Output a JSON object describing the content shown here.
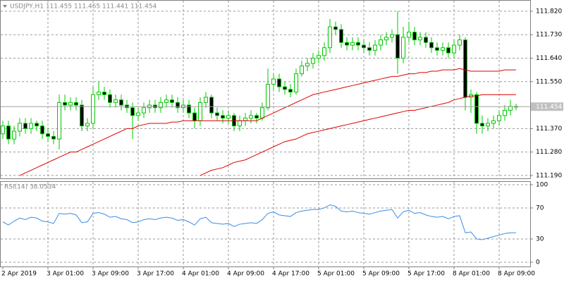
{
  "chart_data": [
    {
      "type": "candlestick",
      "title": "USDJPY,H1  111.455 111.465 111.441 111.454",
      "x": [
        "2 Apr 2019",
        null,
        null,
        null,
        null,
        null,
        null,
        null,
        "3 Apr 01:00",
        null,
        null,
        null,
        null,
        null,
        null,
        null,
        "3 Apr 09:00",
        null,
        null,
        null,
        null,
        null,
        null,
        null,
        "3 Apr 17:00",
        null,
        null,
        null,
        null,
        null,
        null,
        null,
        "4 Apr 01:00",
        null,
        null,
        null,
        null,
        null,
        null,
        null,
        "4 Apr 09:00",
        null,
        null,
        null,
        null,
        null,
        null,
        null,
        "4 Apr 17:00",
        null,
        null,
        null,
        null,
        null,
        null,
        null,
        "5 Apr 01:00",
        null,
        null,
        null,
        null,
        null,
        null,
        null,
        "5 Apr 09:00",
        null,
        null,
        null,
        null,
        null,
        null,
        null,
        "5 Apr 17:00",
        null,
        null,
        null,
        null,
        null,
        null,
        null,
        "8 Apr 01:00",
        null,
        null,
        null,
        null,
        null,
        null,
        null,
        "8 Apr 09:00",
        null,
        null,
        null
      ],
      "open": [
        111.35,
        111.38,
        111.33,
        111.36,
        111.39,
        111.37,
        111.39,
        111.38,
        111.35,
        111.34,
        111.33,
        111.47,
        111.46,
        111.47,
        111.46,
        111.38,
        111.39,
        111.5,
        111.51,
        111.5,
        111.47,
        111.48,
        111.46,
        111.45,
        111.42,
        111.43,
        111.45,
        111.46,
        111.45,
        111.47,
        111.48,
        111.47,
        111.45,
        111.46,
        111.43,
        111.4,
        111.47,
        111.49,
        111.43,
        111.42,
        111.41,
        111.42,
        111.38,
        111.4,
        111.41,
        111.42,
        111.41,
        111.45,
        111.54,
        111.56,
        111.53,
        111.52,
        111.51,
        111.58,
        111.61,
        111.62,
        111.64,
        111.65,
        111.68,
        111.76,
        111.75,
        111.7,
        111.69,
        111.7,
        111.69,
        111.68,
        111.67,
        111.69,
        111.71,
        111.72,
        111.73,
        111.64,
        111.72,
        111.74,
        111.71,
        111.72,
        111.7,
        111.68,
        111.67,
        111.68,
        111.66,
        111.69,
        111.71,
        111.49,
        111.5,
        111.39,
        111.38,
        111.39,
        111.4,
        111.42,
        111.44,
        111.455
      ],
      "high": [
        111.4,
        111.4,
        111.38,
        111.41,
        111.41,
        111.41,
        111.4,
        111.4,
        111.37,
        111.36,
        111.5,
        111.5,
        111.49,
        111.49,
        111.48,
        111.41,
        111.53,
        111.55,
        111.53,
        111.52,
        111.5,
        111.5,
        111.48,
        111.47,
        111.45,
        111.47,
        111.48,
        111.48,
        111.49,
        111.5,
        111.5,
        111.49,
        111.48,
        111.48,
        111.45,
        111.49,
        111.51,
        111.5,
        111.45,
        111.44,
        111.44,
        111.43,
        111.42,
        111.43,
        111.44,
        111.43,
        111.47,
        111.6,
        111.58,
        111.58,
        111.55,
        111.54,
        111.6,
        111.63,
        111.64,
        111.66,
        111.67,
        111.7,
        111.79,
        111.78,
        111.77,
        111.72,
        111.72,
        111.72,
        111.71,
        111.7,
        111.71,
        111.73,
        111.74,
        111.75,
        111.82,
        111.76,
        111.78,
        111.76,
        111.74,
        111.74,
        111.72,
        111.7,
        111.7,
        111.7,
        111.71,
        111.73,
        111.72,
        111.52,
        111.51,
        111.42,
        111.41,
        111.42,
        111.44,
        111.46,
        111.48,
        111.465
      ],
      "low": [
        111.33,
        111.31,
        111.31,
        111.34,
        111.35,
        111.35,
        111.36,
        111.33,
        111.32,
        111.31,
        111.29,
        111.44,
        111.44,
        111.44,
        111.36,
        111.36,
        111.37,
        111.48,
        111.48,
        111.45,
        111.45,
        111.44,
        111.43,
        111.33,
        111.4,
        111.41,
        111.43,
        111.43,
        111.43,
        111.45,
        111.45,
        111.43,
        111.43,
        111.41,
        111.37,
        111.38,
        111.45,
        111.41,
        111.4,
        111.39,
        111.39,
        111.36,
        111.36,
        111.38,
        111.39,
        111.39,
        111.4,
        111.44,
        111.52,
        111.51,
        111.5,
        111.49,
        111.5,
        111.57,
        111.59,
        111.6,
        111.62,
        111.63,
        111.66,
        111.73,
        111.68,
        111.67,
        111.67,
        111.67,
        111.66,
        111.65,
        111.65,
        111.67,
        111.69,
        111.7,
        111.58,
        111.62,
        111.7,
        111.69,
        111.69,
        111.68,
        111.66,
        111.65,
        111.65,
        111.64,
        111.64,
        111.67,
        111.44,
        111.43,
        111.35,
        111.35,
        111.36,
        111.37,
        111.38,
        111.4,
        111.42,
        111.441
      ],
      "close": [
        111.38,
        111.33,
        111.36,
        111.39,
        111.37,
        111.39,
        111.38,
        111.35,
        111.34,
        111.33,
        111.47,
        111.46,
        111.47,
        111.46,
        111.38,
        111.39,
        111.5,
        111.51,
        111.5,
        111.47,
        111.48,
        111.46,
        111.45,
        111.42,
        111.43,
        111.45,
        111.46,
        111.45,
        111.47,
        111.48,
        111.47,
        111.45,
        111.46,
        111.43,
        111.4,
        111.47,
        111.49,
        111.43,
        111.42,
        111.41,
        111.42,
        111.38,
        111.4,
        111.41,
        111.42,
        111.41,
        111.45,
        111.54,
        111.56,
        111.53,
        111.52,
        111.51,
        111.58,
        111.61,
        111.62,
        111.64,
        111.65,
        111.68,
        111.76,
        111.75,
        111.7,
        111.69,
        111.7,
        111.69,
        111.68,
        111.67,
        111.69,
        111.71,
        111.72,
        111.73,
        111.64,
        111.72,
        111.74,
        111.71,
        111.72,
        111.7,
        111.68,
        111.67,
        111.68,
        111.66,
        111.69,
        111.71,
        111.49,
        111.5,
        111.39,
        111.38,
        111.39,
        111.4,
        111.42,
        111.44,
        111.455,
        111.454
      ],
      "series": [
        {
          "color": "#e00000",
          "values": [
            null,
            null,
            null,
            111.19,
            111.2,
            111.21,
            111.22,
            111.23,
            111.24,
            111.25,
            111.26,
            111.27,
            111.28,
            111.28,
            111.29,
            111.3,
            111.31,
            111.32,
            111.33,
            111.34,
            111.35,
            111.36,
            111.37,
            111.37,
            111.38,
            111.385,
            111.39,
            111.39,
            111.39,
            111.39,
            111.395,
            111.395,
            111.4,
            111.4,
            111.4,
            111.4,
            111.4,
            111.4,
            111.4,
            111.4,
            111.4,
            111.4,
            111.4,
            111.4,
            111.4,
            111.4,
            111.41,
            111.42,
            111.43,
            111.44,
            111.45,
            111.46,
            111.47,
            111.48,
            111.49,
            111.5,
            111.505,
            111.51,
            111.515,
            111.52,
            111.525,
            111.53,
            111.535,
            111.54,
            111.545,
            111.55,
            111.555,
            111.56,
            111.565,
            111.57,
            111.57,
            111.575,
            111.58,
            111.58,
            111.585,
            111.585,
            111.59,
            111.59,
            111.595,
            111.595,
            111.595,
            111.6,
            111.595,
            111.59,
            111.59,
            111.59,
            111.59,
            111.59,
            111.59,
            111.595,
            111.595,
            111.595
          ]
        },
        {
          "color": "#e00000",
          "values": [
            null,
            null,
            null,
            null,
            null,
            null,
            null,
            null,
            null,
            null,
            null,
            null,
            null,
            null,
            null,
            null,
            null,
            null,
            null,
            null,
            null,
            null,
            null,
            null,
            null,
            null,
            null,
            null,
            null,
            null,
            null,
            null,
            null,
            null,
            null,
            111.19,
            111.2,
            111.21,
            111.215,
            111.22,
            111.23,
            111.24,
            111.245,
            111.25,
            111.26,
            111.27,
            111.28,
            111.29,
            111.3,
            111.31,
            111.32,
            111.325,
            111.33,
            111.34,
            111.35,
            111.355,
            111.36,
            111.365,
            111.37,
            111.375,
            111.38,
            111.385,
            111.39,
            111.395,
            111.4,
            111.405,
            111.41,
            111.415,
            111.42,
            111.425,
            111.43,
            111.435,
            111.44,
            111.44,
            111.445,
            111.45,
            111.455,
            111.46,
            111.465,
            111.47,
            111.48,
            111.485,
            111.49,
            111.495,
            111.495,
            111.5,
            111.5,
            111.5,
            111.5,
            111.5,
            111.5,
            111.5
          ]
        }
      ],
      "ylim": [
        111.179,
        111.863
      ],
      "yticks": [
        {
          "value": 111.82,
          "label": "111.820"
        },
        {
          "value": 111.73,
          "label": "111.730"
        },
        {
          "value": 111.64,
          "label": "111.640"
        },
        {
          "value": 111.55,
          "label": "111.550"
        },
        {
          "value": 111.37,
          "label": "111.370"
        },
        {
          "value": 111.28,
          "label": "111.280"
        },
        {
          "value": 111.19,
          "label": "111.190"
        }
      ],
      "last": 111.454,
      "bull_color": "#00c800",
      "bear_color": "#000000",
      "grid": true
    },
    {
      "type": "line",
      "title": "RSI(14) 38.0534",
      "series": [
        {
          "color": "#3c8ce6",
          "values": [
            52,
            48,
            53,
            57,
            55,
            58,
            57,
            53,
            52,
            50,
            63,
            62,
            63,
            61,
            51,
            52,
            63,
            64,
            62,
            58,
            59,
            56,
            55,
            51,
            52,
            55,
            56,
            55,
            57,
            58,
            57,
            54,
            55,
            52,
            48,
            56,
            58,
            51,
            50,
            49,
            50,
            46,
            49,
            50,
            51,
            50,
            55,
            63,
            65,
            61,
            60,
            59,
            64,
            66,
            67,
            68,
            68,
            70,
            74,
            72,
            66,
            65,
            66,
            64,
            63,
            62,
            64,
            66,
            67,
            68,
            57,
            65,
            67,
            63,
            64,
            61,
            59,
            58,
            59,
            56,
            59,
            60,
            38,
            39,
            30,
            29,
            31,
            33,
            35,
            37,
            38,
            38.0534
          ]
        }
      ],
      "ylim": [
        -5.5,
        104.5
      ],
      "yticks": [
        100,
        70,
        30,
        0
      ],
      "grid": true
    }
  ]
}
